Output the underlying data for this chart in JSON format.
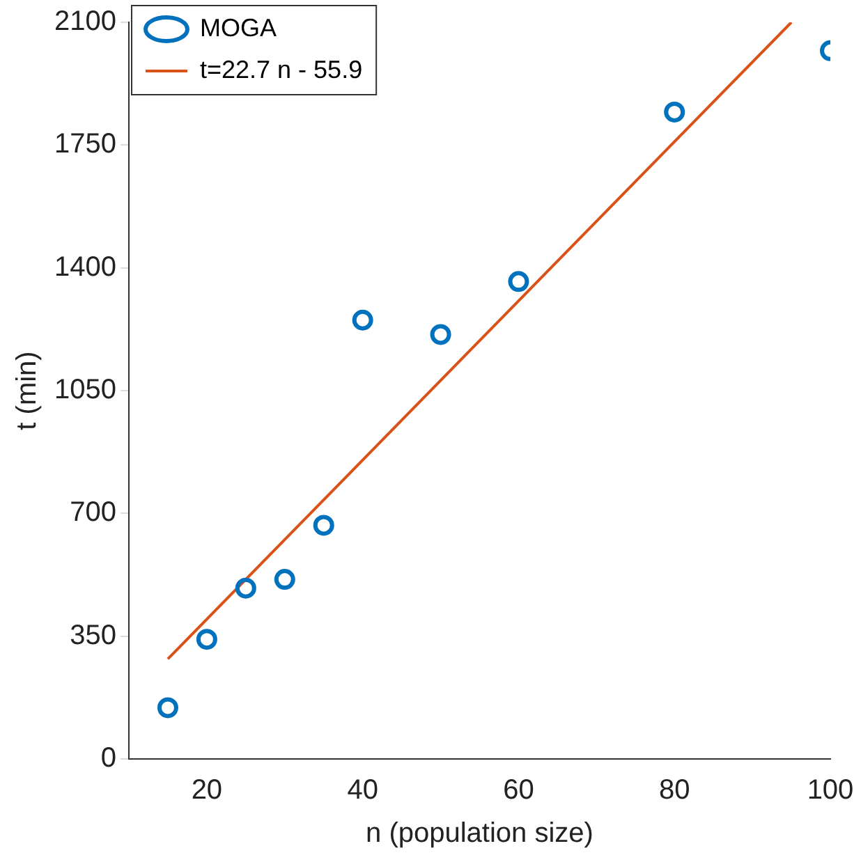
{
  "chart_data": {
    "type": "scatter",
    "xlabel": "n (population size)",
    "ylabel": "t (min)",
    "xlim": [
      10,
      100
    ],
    "xticks": [
      20,
      40,
      60,
      80,
      100
    ],
    "ylim": [
      0,
      2100
    ],
    "yticks": [
      0,
      350,
      700,
      1050,
      1400,
      1750,
      2100
    ],
    "grid": false,
    "legend": "top left",
    "series": [
      {
        "name": "MOGA",
        "color": "#0072bd",
        "marker": "circle",
        "x": [
          15,
          20,
          25,
          30,
          35,
          40,
          50,
          60,
          80,
          100
        ],
        "values": [
          146,
          341,
          487,
          512,
          666,
          1251,
          1210,
          1361,
          1844,
          2019
        ]
      },
      {
        "name": "t=22.7 n - 55.9",
        "type": "line",
        "color": "#d95319",
        "marker": "none",
        "x": [
          15,
          95
        ],
        "values": [
          285,
          2100
        ]
      }
    ]
  }
}
